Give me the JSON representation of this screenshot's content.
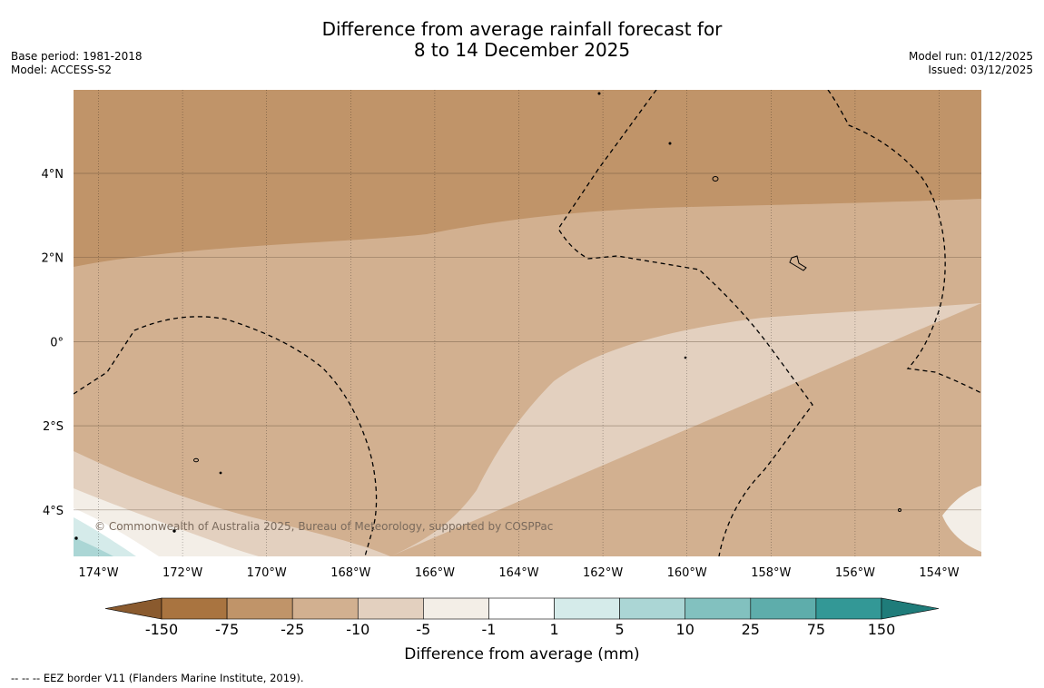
{
  "title_line1": "Difference from average rainfall forecast for",
  "title_line2": "8 to 14 December 2025",
  "base_period": "Base period: 1981-2018",
  "model": "Model: ACCESS-S2",
  "model_run": "Model run: 01/12/2025",
  "issued": "Issued: 03/12/2025",
  "copyright": "© Commonwealth of Australia 2025, Bureau of Meteorology, supported by COSPPac",
  "footnote": "-- -- -- EEZ border V11 (Flanders Marine Institute, 2019).",
  "map": {
    "lon_labels": [
      "174°W",
      "172°W",
      "170°W",
      "168°W",
      "166°W",
      "164°W",
      "162°W",
      "160°W",
      "158°W",
      "156°W",
      "154°W"
    ],
    "lat_labels": [
      "4°N",
      "2°N",
      "0°",
      "2°S",
      "4°S"
    ]
  },
  "colorbar": {
    "title": "Difference from average (mm)",
    "ticks": [
      "-150",
      "-75",
      "-25",
      "-10",
      "-5",
      "-1",
      "1",
      "5",
      "10",
      "25",
      "75",
      "150"
    ],
    "colors": {
      "below_min": "#8a5a2e",
      "bins": [
        "#a97440",
        "#c09469",
        "#d2b090",
        "#e3d0bf",
        "#f3eee7",
        "#ffffff",
        "#d5ebea",
        "#abd6d5",
        "#82c1bf",
        "#5eadab",
        "#339896"
      ],
      "above_max": "#1f7c7a"
    }
  }
}
